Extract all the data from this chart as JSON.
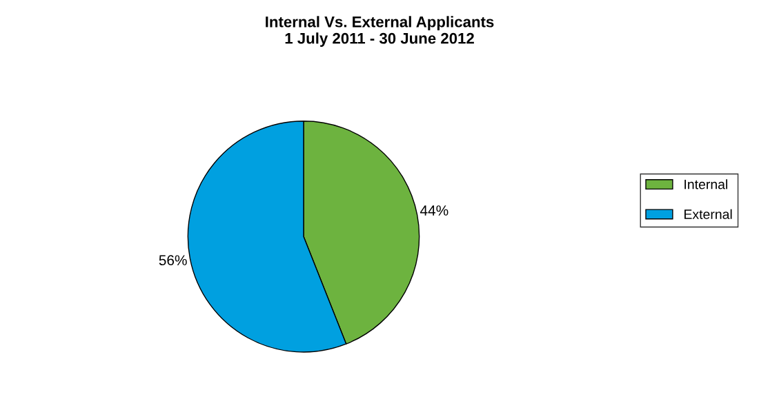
{
  "chart_data": {
    "type": "pie",
    "title": "Internal Vs. External Applicants\n1 July 2011 - 30 June 2012",
    "categories": [
      "Internal",
      "External"
    ],
    "values": [
      44,
      56
    ],
    "colors": [
      "#6db33f",
      "#00a0e0"
    ],
    "value_labels": [
      "44%",
      "56%"
    ],
    "legend": "right"
  }
}
